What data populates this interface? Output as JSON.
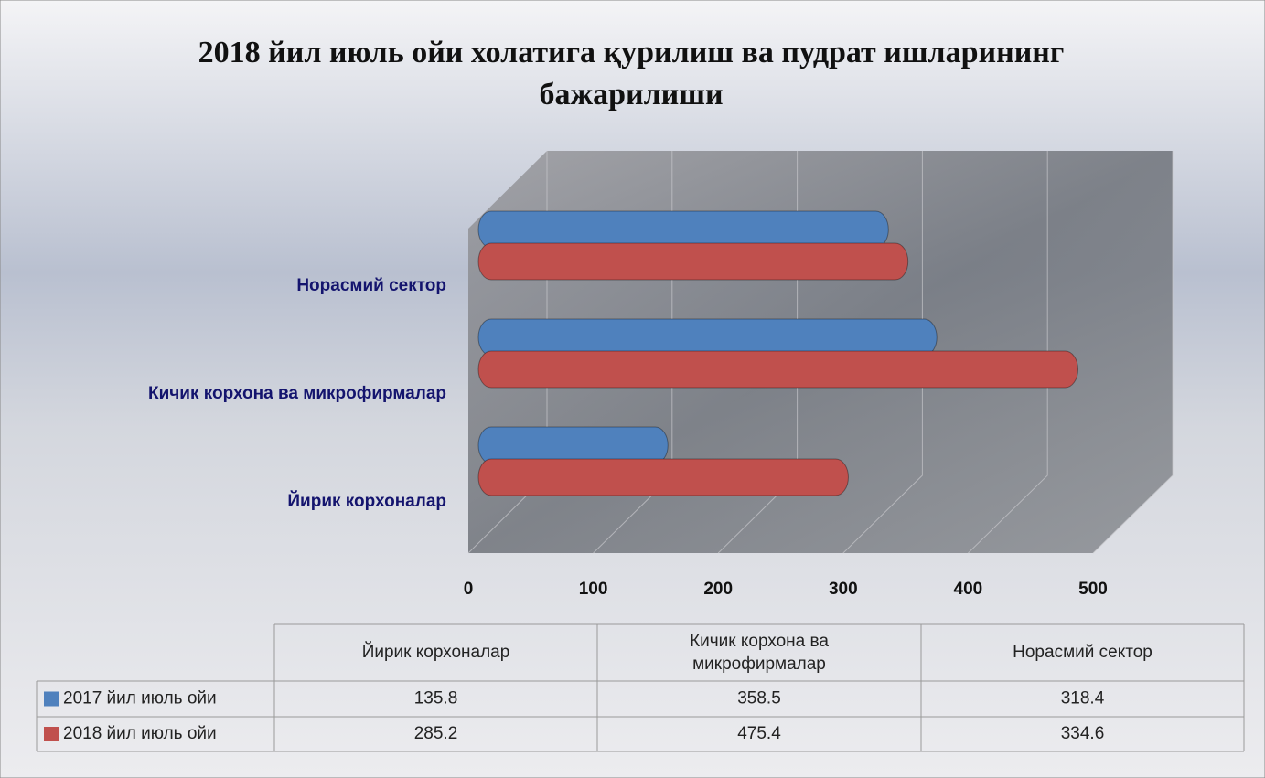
{
  "chart_data": {
    "type": "bar",
    "orientation": "horizontal",
    "title": "2018 йил июль ойи холатига қурилиш ва пудрат ишларининг бажарилиши",
    "categories": [
      "Йирик корхоналар",
      "Кичик корхона ва микрофирмалар",
      "Норасмий сектор"
    ],
    "series": [
      {
        "name": "2017 йил июль ойи",
        "color": "#4f81bd",
        "values": [
          135.8,
          358.5,
          318.4
        ]
      },
      {
        "name": "2018 йил июль ойи",
        "color": "#c0504d",
        "values": [
          285.2,
          475.4,
          334.6
        ]
      }
    ],
    "xlim": [
      0,
      500
    ],
    "xticks": [
      0,
      100,
      200,
      300,
      400,
      500
    ],
    "grid": true,
    "data_table": true
  }
}
